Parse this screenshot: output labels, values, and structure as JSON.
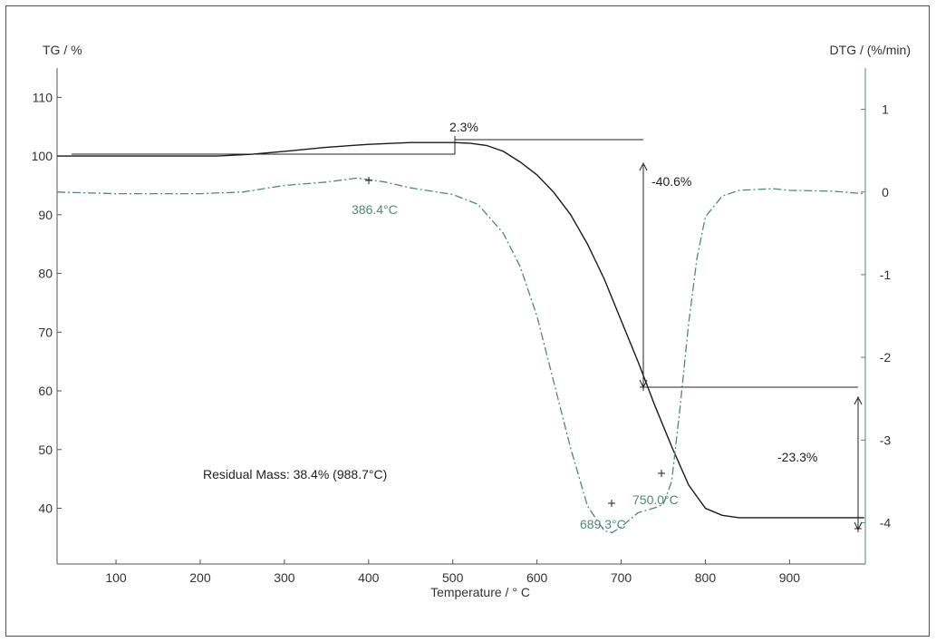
{
  "chart_data": {
    "type": "line",
    "ylabel_left": "TG / %",
    "ylabel_right": "DTG / (%/min)",
    "xlabel": "Temperature / ° C",
    "xlim": [
      30,
      990
    ],
    "ylim_left": [
      30.5,
      115
    ],
    "ylim_right": [
      -4.5,
      1.5
    ],
    "x_ticks": [
      100,
      200,
      300,
      400,
      500,
      600,
      700,
      800,
      900
    ],
    "y_left_ticks": [
      40,
      50,
      60,
      70,
      80,
      90,
      100,
      110
    ],
    "y_right_ticks": [
      -4,
      -3,
      -2,
      -1,
      0,
      1
    ],
    "series": [
      {
        "axis": "left",
        "style": "solid",
        "color": "#1a1a1a",
        "x": [
          30,
          220,
          260,
          300,
          350,
          400,
          450,
          500,
          520,
          540,
          560,
          580,
          600,
          620,
          640,
          660,
          680,
          700,
          720,
          740,
          760,
          780,
          800,
          820,
          840,
          860,
          900,
          988.7
        ],
        "y": [
          100.0,
          100.0,
          100.3,
          100.8,
          101.5,
          102.0,
          102.3,
          102.3,
          102.2,
          101.8,
          100.8,
          99.0,
          96.8,
          93.8,
          90.0,
          85.0,
          79.0,
          72.0,
          65.0,
          57.5,
          50.5,
          44.0,
          40.0,
          38.8,
          38.4,
          38.4,
          38.4,
          38.4
        ]
      },
      {
        "axis": "right",
        "style": "dash-dot",
        "color": "#4f8a73",
        "x": [
          30,
          100,
          200,
          250,
          300,
          350,
          386.4,
          420,
          450,
          500,
          530,
          560,
          580,
          600,
          620,
          640,
          660,
          680,
          689.3,
          700,
          720,
          740,
          750,
          760,
          770,
          780,
          790,
          800,
          820,
          840,
          860,
          880,
          900,
          950,
          988
        ],
        "y": [
          0.0,
          -0.02,
          -0.02,
          0.0,
          0.08,
          0.12,
          0.17,
          0.12,
          0.05,
          -0.03,
          -0.15,
          -0.5,
          -0.9,
          -1.5,
          -2.3,
          -3.1,
          -3.8,
          -4.1,
          -4.12,
          -4.05,
          -3.88,
          -3.82,
          -3.78,
          -3.5,
          -2.6,
          -1.6,
          -0.8,
          -0.3,
          -0.05,
          0.02,
          0.03,
          0.04,
          0.02,
          0.01,
          -0.02
        ]
      }
    ],
    "annotations": {
      "step_gain": "2.3%",
      "step1": "-40.6%",
      "step2": "-23.3%",
      "peak1": "386.4°C",
      "peak2": "689.3°C",
      "peak3": "750.0°C",
      "residual": "Residual Mass: 38.4% (988.7°C)"
    },
    "grid": false
  }
}
